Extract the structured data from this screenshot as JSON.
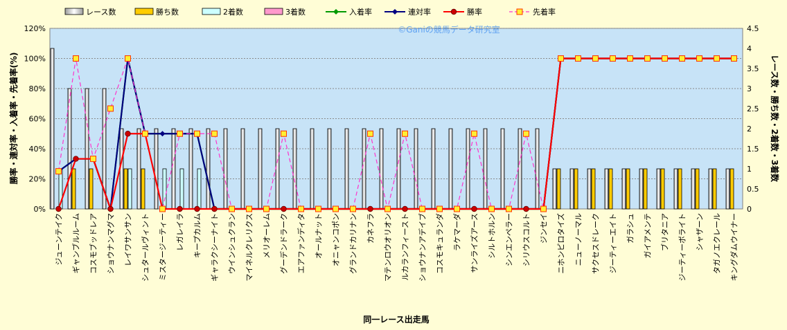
{
  "chart_data": {
    "type": "bar",
    "watermark": "©Ganiの競馬データ研究室",
    "xlabel": "同一レース出走馬",
    "ylabel_left": "勝率・連対率・入着率・先着率(%)",
    "ylabel_right": "レース数・勝ち数・2着数・3着数",
    "ylim_left": [
      0,
      120
    ],
    "ylim_right": [
      0,
      4.5
    ],
    "yticks_left": [
      "0%",
      "20%",
      "40%",
      "60%",
      "80%",
      "100%",
      "120%"
    ],
    "yticks_right": [
      "0",
      "0.5",
      "1",
      "1.5",
      "2",
      "2.5",
      "3",
      "3.5",
      "4",
      "4.5"
    ],
    "grid": true,
    "legend_position": "top",
    "categories": [
      "ジューンテイク",
      "ギャンブルルーム",
      "コスモブッドレア",
      "ショウナンマグマ",
      "レイワサンサン",
      "シュタールヴィント",
      "ミスタージーティー",
      "レガレイラ",
      "キープカルム",
      "ギャラクシーナイト",
      "ウインシュクラン",
      "マイネルクレリクス",
      "メリオーレム",
      "グーデンドラーク",
      "エアファンディタ",
      "オールナット",
      "オニャンコポン",
      "グランドカリナン",
      "カネフラ",
      "マテンロウオリオン",
      "ルカランフィースト",
      "ショウナンアデイブ",
      "コスモキュランダ",
      "ラケマーダ",
      "サンライズアース",
      "シルトホルン",
      "シンエンペラー",
      "シリウスコルト",
      "ジンセイ",
      "ニホンピロタイズ",
      "ニューノーマル",
      "サクセスドレーク",
      "ジーティーエイト",
      "ガラシュ",
      "ガイアメンテ",
      "ブリタニア",
      "ジーティーボライト",
      "シャザーン",
      "タガノエクレール",
      "キングダムウイナー"
    ],
    "series": [
      {
        "name": "レース数",
        "axis": "right",
        "kind": "bar",
        "color": "#ffffff",
        "values": [
          4,
          3,
          3,
          3,
          2,
          2,
          2,
          2,
          2,
          2,
          2,
          2,
          2,
          2,
          2,
          2,
          2,
          2,
          2,
          2,
          2,
          2,
          2,
          2,
          2,
          2,
          2,
          2,
          2,
          1,
          1,
          1,
          1,
          1,
          1,
          1,
          1,
          1,
          1,
          1
        ]
      },
      {
        "name": "勝ち数",
        "axis": "right",
        "kind": "bar",
        "color": "#ffcc00",
        "values": [
          0,
          1,
          1,
          0,
          1,
          1,
          0,
          0,
          0,
          0,
          0,
          0,
          0,
          0,
          0,
          0,
          0,
          0,
          0,
          0,
          0,
          0,
          0,
          0,
          0,
          0,
          0,
          0,
          0,
          1,
          1,
          1,
          1,
          1,
          1,
          1,
          1,
          1,
          1,
          1
        ]
      },
      {
        "name": "2着数",
        "axis": "right",
        "kind": "bar",
        "color": "#ccffff",
        "values": [
          1,
          0,
          0,
          0,
          1,
          0,
          1,
          1,
          1,
          0,
          0,
          0,
          0,
          0,
          0,
          0,
          0,
          0,
          0,
          0,
          0,
          0,
          0,
          0,
          0,
          0,
          0,
          0,
          0,
          0,
          0,
          0,
          0,
          0,
          0,
          0,
          0,
          0,
          0,
          0
        ]
      },
      {
        "name": "3着数",
        "axis": "right",
        "kind": "bar",
        "color": "#ff99cc",
        "values": [
          0,
          0,
          0,
          0,
          0,
          0,
          0,
          0,
          0,
          0,
          0,
          0,
          0,
          0,
          0,
          0,
          0,
          0,
          0,
          0,
          0,
          0,
          0,
          0,
          0,
          0,
          0,
          0,
          0,
          0,
          0,
          0,
          0,
          0,
          0,
          0,
          0,
          0,
          0,
          0
        ]
      },
      {
        "name": "入着率",
        "axis": "left",
        "kind": "line",
        "color": "#009900",
        "values": [
          25,
          33.3,
          33.3,
          0,
          100,
          50,
          50,
          50,
          50,
          0,
          0,
          0,
          0,
          0,
          0,
          0,
          0,
          0,
          0,
          0,
          0,
          0,
          0,
          0,
          0,
          0,
          0,
          0,
          0,
          100,
          100,
          100,
          100,
          100,
          100,
          100,
          100,
          100,
          100,
          100
        ]
      },
      {
        "name": "連対率",
        "axis": "left",
        "kind": "line",
        "color": "#000080",
        "values": [
          25,
          33.3,
          33.3,
          0,
          100,
          50,
          50,
          50,
          50,
          0,
          0,
          0,
          0,
          0,
          0,
          0,
          0,
          0,
          0,
          0,
          0,
          0,
          0,
          0,
          0,
          0,
          0,
          0,
          0,
          100,
          100,
          100,
          100,
          100,
          100,
          100,
          100,
          100,
          100,
          100
        ]
      },
      {
        "name": "勝率",
        "axis": "left",
        "kind": "line",
        "color": "#ff0000",
        "values": [
          0,
          33.3,
          33.3,
          0,
          50,
          50,
          0,
          0,
          0,
          0,
          0,
          0,
          0,
          0,
          0,
          0,
          0,
          0,
          0,
          0,
          0,
          0,
          0,
          0,
          0,
          0,
          0,
          0,
          0,
          100,
          100,
          100,
          100,
          100,
          100,
          100,
          100,
          100,
          100,
          100
        ]
      },
      {
        "name": "先着率",
        "axis": "left",
        "kind": "dashed",
        "color": "#ff33cc",
        "values": [
          25,
          100,
          33.3,
          66.7,
          100,
          50,
          0,
          50,
          50,
          50,
          0,
          0,
          0,
          50,
          0,
          0,
          0,
          0,
          50,
          0,
          50,
          0,
          0,
          0,
          50,
          0,
          0,
          50,
          0,
          100,
          100,
          100,
          100,
          100,
          100,
          100,
          100,
          100,
          100,
          100
        ]
      }
    ]
  }
}
